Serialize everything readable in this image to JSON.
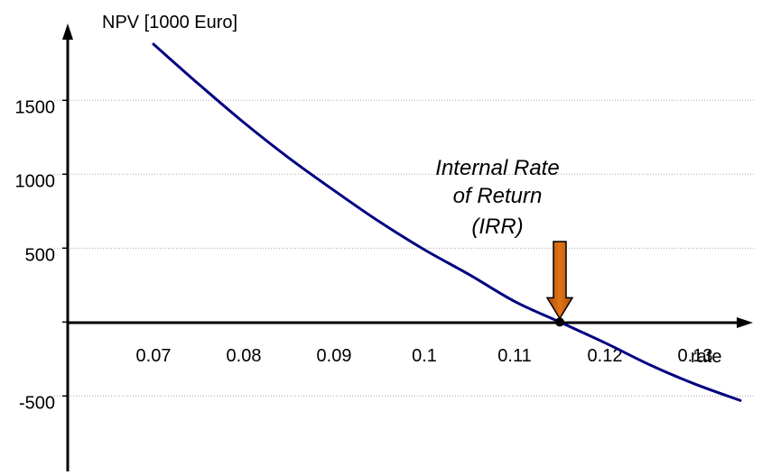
{
  "chart_data": {
    "type": "line",
    "title": "",
    "ylabel": "NPV [1000 Euro]",
    "xlabel": "rate",
    "x_ticks": [
      "0.07",
      "0.08",
      "0.09",
      "0.1",
      "0.11",
      "0.12",
      "0.13"
    ],
    "x_tick_values": [
      0.07,
      0.08,
      0.09,
      0.1,
      0.11,
      0.12,
      0.13
    ],
    "y_ticks": [
      "1500",
      "1000",
      "500",
      "-500"
    ],
    "y_tick_values": [
      1500,
      1000,
      500,
      -500
    ],
    "xlim": [
      0.0605,
      0.1365
    ],
    "ylim": [
      -1010,
      2020
    ],
    "grid": "horizontal-dotted",
    "series": [
      {
        "color": "#000080",
        "x": [
          0.07,
          0.075,
          0.08,
          0.085,
          0.09,
          0.095,
          0.1,
          0.105,
          0.11,
          0.115,
          0.12,
          0.125,
          0.13,
          0.135
        ],
        "y": [
          1880,
          1610,
          1350,
          1110,
          890,
          680,
          490,
          320,
          140,
          0,
          -140,
          -290,
          -420,
          -530
        ]
      }
    ],
    "annotation": {
      "lines": [
        "Internal Rate",
        "of Return",
        "(IRR)"
      ],
      "x": 0.115,
      "y": 0,
      "arrow_color": "#c8600a"
    }
  }
}
